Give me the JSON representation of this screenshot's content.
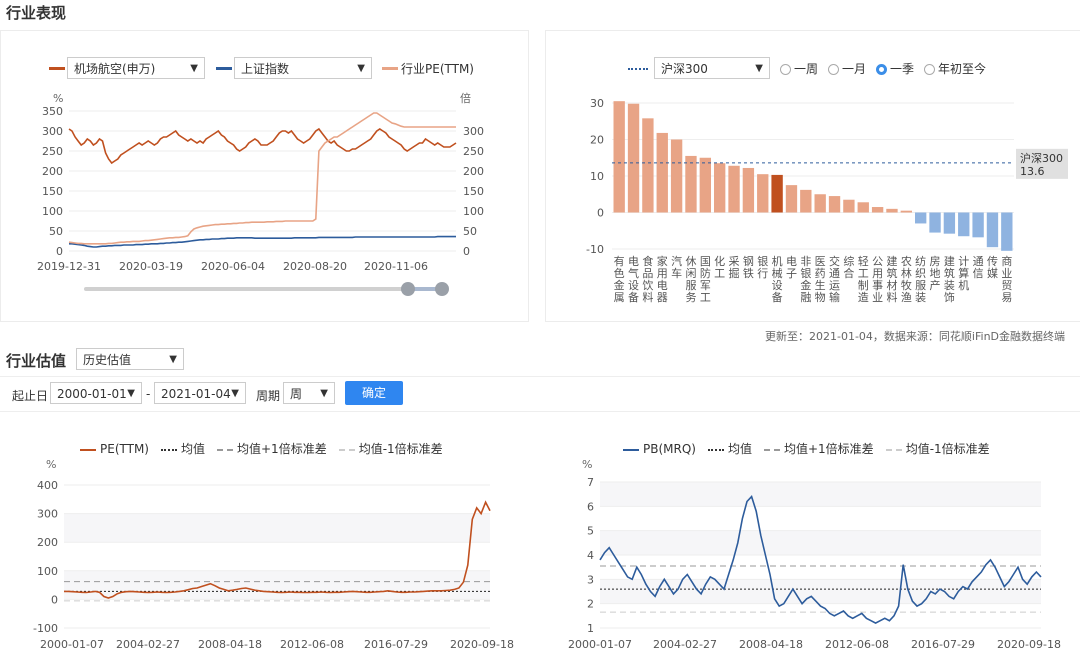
{
  "section1_title": "行业表现",
  "panel_tl": {
    "select_industry": "机场航空(申万)",
    "select_index": "上证指数",
    "legend_pe": "行业PE(TTM)",
    "y_left_unit": "%",
    "y_right_unit": "倍",
    "colors": {
      "industry": "#c0501f",
      "index": "#2d5c9c",
      "pe": "#e8a486"
    }
  },
  "panel_tr": {
    "select_benchmark": "沪深300",
    "radios": [
      {
        "label": "一周",
        "selected": false
      },
      {
        "label": "一月",
        "selected": false
      },
      {
        "label": "一季",
        "selected": true
      },
      {
        "label": "年初至今",
        "selected": false
      }
    ],
    "benchmark_label": "沪深300",
    "benchmark_value": "13.6",
    "footer": "更新至：2021-01-04，数据来源：同花顺iFinD金融数据终端"
  },
  "section2_title": "行业估值",
  "valuation_select": "历史估值",
  "date_label": "起止日",
  "date_start": "2000-01-01",
  "date_dash": "-",
  "date_end": "2021-01-04",
  "period_label": "周期",
  "period_value": "周",
  "confirm": "确定",
  "panel_bl": {
    "legend": [
      "PE(TTM)",
      "均值",
      "均值+1倍标准差",
      "均值-1倍标准差"
    ],
    "y_unit": "%"
  },
  "panel_br": {
    "legend": [
      "PB(MRQ)",
      "均值",
      "均值+1倍标准差",
      "均值-1倍标准差"
    ],
    "y_unit": "%"
  },
  "chart_data": [
    {
      "type": "line",
      "title": "",
      "x_ticks": [
        "2019-12-31",
        "2020-03-19",
        "2020-06-04",
        "2020-08-20",
        "2020-11-06"
      ],
      "y_left_ticks": [
        0,
        50,
        100,
        150,
        200,
        250,
        300,
        350
      ],
      "y_right_ticks": [
        0,
        50,
        100,
        150,
        200,
        250,
        300
      ],
      "ylim_left": [
        0,
        350
      ],
      "ylim_right": [
        0,
        350
      ],
      "series": [
        {
          "name": "机场航空(申万)",
          "axis": "left",
          "values": [
            305,
            300,
            285,
            275,
            265,
            270,
            280,
            275,
            265,
            270,
            280,
            275,
            245,
            230,
            220,
            225,
            230,
            240,
            245,
            250,
            255,
            260,
            265,
            270,
            265,
            270,
            275,
            270,
            265,
            270,
            280,
            285,
            285,
            290,
            295,
            300,
            290,
            285,
            280,
            275,
            280,
            275,
            270,
            275,
            270,
            280,
            285,
            290,
            295,
            300,
            290,
            285,
            275,
            270,
            265,
            255,
            250,
            255,
            260,
            270,
            275,
            280,
            275,
            265,
            265,
            265,
            270,
            275,
            285,
            295,
            300,
            300,
            295,
            300,
            290,
            280,
            275,
            270,
            275,
            280,
            290,
            300,
            305,
            295,
            285,
            275,
            270,
            275,
            265,
            260,
            255,
            250,
            250,
            255,
            255,
            260,
            265,
            270,
            275,
            280,
            290,
            300,
            305,
            300,
            295,
            285,
            280,
            275,
            270,
            265,
            255,
            250,
            255,
            260,
            265,
            270,
            270,
            280,
            275,
            270,
            265,
            270,
            265,
            260,
            260,
            260,
            265,
            270
          ]
        },
        {
          "name": "上证指数",
          "axis": "left",
          "values": [
            18,
            18,
            17,
            16,
            15,
            14,
            12,
            11,
            10,
            10,
            11,
            12,
            12,
            13,
            13,
            14,
            14,
            14,
            15,
            15,
            15,
            15,
            16,
            16,
            16,
            17,
            17,
            18,
            18,
            18,
            19,
            19,
            20,
            20,
            21,
            21,
            22,
            22,
            23,
            24,
            25,
            26,
            27,
            28,
            28,
            29,
            29,
            30,
            30,
            30,
            31,
            31,
            32,
            32,
            32,
            33,
            33,
            33,
            33,
            33,
            33,
            32,
            32,
            32,
            32,
            32,
            32,
            32,
            32,
            32,
            32,
            32,
            32,
            32,
            33,
            33,
            33,
            33,
            33,
            33,
            33,
            33,
            34,
            34,
            34,
            34,
            34,
            34,
            34,
            34,
            34,
            34,
            34,
            34,
            35,
            35,
            35,
            35,
            35,
            35,
            35,
            35,
            35,
            35,
            35,
            35,
            35,
            35,
            35,
            35,
            35,
            35,
            35,
            35,
            35,
            35,
            35,
            35,
            35,
            35,
            35,
            36,
            36,
            36,
            36,
            36,
            36,
            36
          ]
        },
        {
          "name": "行业PE(TTM)",
          "axis": "right",
          "values": [
            22,
            21,
            20,
            19,
            19,
            18,
            18,
            18,
            18,
            18,
            18,
            18,
            18,
            19,
            19,
            20,
            21,
            22,
            22,
            23,
            23,
            24,
            24,
            24,
            25,
            26,
            26,
            27,
            28,
            29,
            30,
            31,
            32,
            33,
            33,
            34,
            34,
            35,
            36,
            38,
            48,
            55,
            58,
            60,
            62,
            63,
            64,
            65,
            66,
            66,
            67,
            67,
            68,
            68,
            69,
            69,
            70,
            70,
            71,
            71,
            72,
            72,
            72,
            72,
            72,
            73,
            73,
            73,
            74,
            74,
            74,
            75,
            75,
            75,
            75,
            75,
            75,
            75,
            75,
            75,
            75,
            80,
            250,
            260,
            270,
            275,
            280,
            285,
            285,
            290,
            295,
            300,
            305,
            310,
            315,
            320,
            325,
            330,
            335,
            340,
            345,
            345,
            340,
            335,
            330,
            325,
            320,
            318,
            315,
            312,
            310,
            310,
            310,
            310,
            310,
            310,
            310,
            310,
            310,
            310,
            310,
            310,
            310,
            310,
            310,
            310,
            310,
            310
          ]
        }
      ]
    },
    {
      "type": "bar",
      "title": "",
      "ylim": [
        -10,
        30
      ],
      "y_ticks": [
        -10,
        0,
        10,
        20,
        30
      ],
      "benchmark": 13.6,
      "highlight": "机械设备",
      "categories": [
        "有色金属",
        "电气设备",
        "食品饮料",
        "家用电器",
        "汽车",
        "休闲服务",
        "国防军工",
        "化工",
        "采掘",
        "钢铁",
        "银行",
        "机械设备",
        "电子",
        "非银金融",
        "医药生物",
        "交通运输",
        "综合",
        "轻工制造",
        "公用事业",
        "建筑材料",
        "农林牧渔",
        "纺织服装",
        "房地产",
        "建筑装饰",
        "计算机",
        "通信",
        "传媒",
        "商业贸易"
      ],
      "values": [
        30.5,
        29.8,
        25.8,
        21.8,
        20.0,
        15.5,
        15.0,
        13.5,
        12.8,
        12.2,
        10.5,
        10.3,
        7.5,
        6.2,
        5.0,
        4.5,
        3.5,
        2.8,
        1.5,
        1.0,
        0.5,
        -3.0,
        -5.5,
        -5.8,
        -6.5,
        -6.8,
        -9.5,
        -10.5
      ]
    },
    {
      "type": "line",
      "title": "",
      "x_ticks": [
        "2000-01-07",
        "2004-02-27",
        "2008-04-18",
        "2012-06-08",
        "2016-07-29",
        "2020-09-18"
      ],
      "y_ticks": [
        -100,
        0,
        100,
        200,
        300,
        400
      ],
      "ylim": [
        -100,
        400
      ],
      "mean": 28,
      "mean_plus_1sd": 62,
      "mean_minus_1sd": -5,
      "series": [
        {
          "name": "PE(TTM)",
          "values": [
            28,
            28,
            27,
            26,
            25,
            24,
            26,
            28,
            25,
            10,
            5,
            10,
            20,
            25,
            27,
            28,
            27,
            26,
            25,
            24,
            25,
            26,
            25,
            24,
            25,
            26,
            28,
            30,
            34,
            38,
            40,
            45,
            50,
            55,
            48,
            40,
            35,
            30,
            32,
            35,
            38,
            40,
            36,
            32,
            30,
            28,
            27,
            26,
            25,
            24,
            25,
            26,
            25,
            25,
            24,
            24,
            25,
            25,
            26,
            25,
            24,
            25,
            25,
            26,
            27,
            28,
            27,
            26,
            25,
            25,
            26,
            27,
            28,
            30,
            28,
            26,
            25,
            25,
            26,
            26,
            27,
            28,
            29,
            30,
            30,
            30,
            31,
            32,
            35,
            40,
            60,
            120,
            280,
            320,
            300,
            340,
            310
          ]
        }
      ]
    },
    {
      "type": "line",
      "title": "",
      "x_ticks": [
        "2000-01-07",
        "2004-02-27",
        "2008-04-18",
        "2012-06-08",
        "2016-07-29",
        "2020-09-18"
      ],
      "y_ticks": [
        1,
        2,
        3,
        4,
        5,
        6,
        7
      ],
      "ylim": [
        1,
        7
      ],
      "mean": 2.6,
      "mean_plus_1sd": 3.55,
      "mean_minus_1sd": 1.65,
      "series": [
        {
          "name": "PB(MRQ)",
          "values": [
            3.8,
            4.1,
            4.3,
            4.0,
            3.7,
            3.4,
            3.1,
            3.0,
            3.5,
            3.2,
            2.8,
            2.5,
            2.3,
            2.7,
            3.0,
            2.7,
            2.4,
            2.6,
            3.0,
            3.2,
            2.9,
            2.6,
            2.4,
            2.8,
            3.1,
            3.0,
            2.8,
            2.6,
            3.2,
            3.8,
            4.5,
            5.5,
            6.2,
            6.4,
            5.8,
            4.8,
            4.0,
            3.2,
            2.2,
            1.9,
            2.0,
            2.3,
            2.6,
            2.3,
            2.0,
            2.2,
            2.3,
            2.1,
            1.9,
            1.8,
            1.6,
            1.5,
            1.6,
            1.7,
            1.5,
            1.4,
            1.5,
            1.6,
            1.4,
            1.3,
            1.2,
            1.3,
            1.4,
            1.3,
            1.5,
            1.9,
            3.6,
            2.6,
            2.1,
            1.9,
            2.0,
            2.2,
            2.5,
            2.4,
            2.6,
            2.5,
            2.3,
            2.2,
            2.5,
            2.7,
            2.6,
            2.9,
            3.1,
            3.3,
            3.6,
            3.8,
            3.5,
            3.1,
            2.7,
            2.9,
            3.2,
            3.5,
            3.0,
            2.8,
            3.1,
            3.3,
            3.1
          ]
        }
      ]
    }
  ]
}
